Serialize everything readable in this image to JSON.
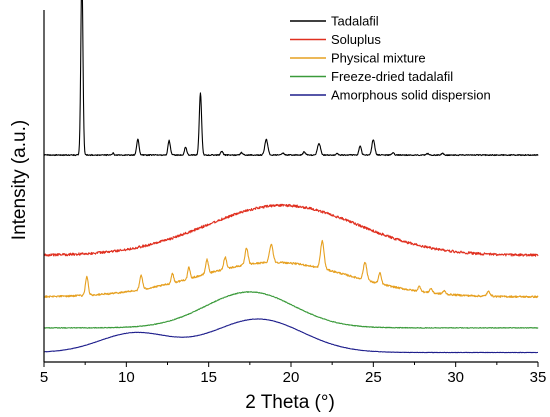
{
  "chart_data": {
    "type": "line",
    "title": "",
    "xlabel": "2 Theta (°)",
    "ylabel": "Intensity (a.u.)",
    "xlim": [
      5,
      35
    ],
    "xticks": [
      5,
      10,
      15,
      20,
      25,
      30,
      35
    ],
    "ylim": [
      0,
      100
    ],
    "y_tick_labels": false,
    "grid": false,
    "legend_position": "top-right",
    "series": [
      {
        "name": "Tadalafil",
        "color": "#000000",
        "baseline": 58.8,
        "noise": 0.15,
        "hump": [],
        "peaks": [
          [
            7.3,
            51.8,
            0.09
          ],
          [
            9.2,
            0.6,
            0.06
          ],
          [
            10.7,
            4.6,
            0.1
          ],
          [
            12.6,
            4.1,
            0.1
          ],
          [
            13.6,
            2.3,
            0.09
          ],
          [
            14.5,
            17.5,
            0.1
          ],
          [
            15.8,
            1.0,
            0.1
          ],
          [
            17.0,
            0.7,
            0.1
          ],
          [
            18.5,
            4.4,
            0.13
          ],
          [
            19.5,
            0.6,
            0.1
          ],
          [
            20.8,
            0.9,
            0.1
          ],
          [
            21.7,
            3.3,
            0.13
          ],
          [
            22.8,
            0.4,
            0.1
          ],
          [
            24.2,
            2.6,
            0.1
          ],
          [
            25.0,
            4.4,
            0.12
          ],
          [
            26.2,
            0.6,
            0.1
          ],
          [
            28.3,
            0.4,
            0.1
          ],
          [
            29.2,
            0.5,
            0.1
          ]
        ]
      },
      {
        "name": "Soluplus",
        "color": "#e03020",
        "baseline": 30.3,
        "noise": 0.35,
        "hump": [
          [
            19.5,
            14.2,
            6.5
          ]
        ],
        "peaks": []
      },
      {
        "name": "Physical mixture",
        "color": "#e6a020",
        "baseline": 18.5,
        "noise": 0.25,
        "hump": [
          [
            19.0,
            9.8,
            6.5
          ]
        ],
        "peaks": [
          [
            7.6,
            5.3,
            0.12
          ],
          [
            10.9,
            4.1,
            0.12
          ],
          [
            12.8,
            2.8,
            0.1
          ],
          [
            13.8,
            3.2,
            0.1
          ],
          [
            14.9,
            4.0,
            0.12
          ],
          [
            16.0,
            3.4,
            0.12
          ],
          [
            17.3,
            4.6,
            0.13
          ],
          [
            18.8,
            5.2,
            0.15
          ],
          [
            21.9,
            7.8,
            0.15
          ],
          [
            24.5,
            5.0,
            0.15
          ],
          [
            25.4,
            3.0,
            0.12
          ],
          [
            27.8,
            1.4,
            0.12
          ],
          [
            28.5,
            1.2,
            0.12
          ],
          [
            29.3,
            0.9,
            0.12
          ],
          [
            32.0,
            1.3,
            0.15
          ]
        ]
      },
      {
        "name": "Freeze-dried tadalafil",
        "color": "#3a9a3a",
        "baseline": 9.7,
        "noise": 0.1,
        "hump": [
          [
            17.5,
            10.2,
            3.8
          ]
        ],
        "peaks": []
      },
      {
        "name": "Amorphous solid dispersion",
        "color": "#1e1e8c",
        "baseline": 2.7,
        "noise": 0.05,
        "hump": [
          [
            10.5,
            5.5,
            3.0
          ],
          [
            18.0,
            9.5,
            3.8
          ]
        ],
        "peaks": []
      }
    ]
  }
}
